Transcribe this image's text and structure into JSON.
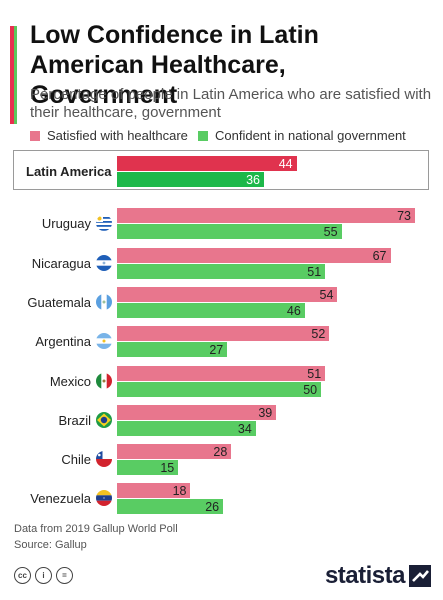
{
  "header": {
    "title": "Low Confidence in Latin American Healthcare, Government",
    "subtitle": "Percentage of people in Latin America who are satisfied with their healthcare, government"
  },
  "colors": {
    "accent_red": "#e8304f",
    "accent_green": "#5cc85c",
    "healthcare": "#e8768d",
    "healthcare_highlight": "#e0334e",
    "government": "#59cc63",
    "government_highlight": "#1db84a"
  },
  "chart_data": {
    "type": "bar",
    "orientation": "horizontal",
    "categories": [
      "Latin America",
      "Uruguay",
      "Nicaragua",
      "Guatemala",
      "Argentina",
      "Mexico",
      "Brazil",
      "Chile",
      "Venezuela"
    ],
    "series": [
      {
        "name": "Satisfied with healthcare",
        "values": [
          44,
          73,
          67,
          54,
          52,
          51,
          39,
          28,
          18
        ]
      },
      {
        "name": "Confident in national government",
        "values": [
          36,
          55,
          51,
          46,
          27,
          50,
          34,
          15,
          26
        ]
      }
    ],
    "highlight_category": "Latin America",
    "xlim": [
      0,
      75
    ],
    "grid": false,
    "legend_position": "top-left"
  },
  "flags": [
    "",
    "uruguay-flag-icon",
    "nicaragua-flag-icon",
    "guatemala-flag-icon",
    "argentina-flag-icon",
    "mexico-flag-icon",
    "brazil-flag-icon",
    "chile-flag-icon",
    "venezuela-flag-icon"
  ],
  "footer": {
    "note": "Data from 2019 Gallup World Poll",
    "source": "Source: Gallup",
    "license_icons": [
      "cc",
      "i",
      "="
    ],
    "logo": "statista"
  }
}
